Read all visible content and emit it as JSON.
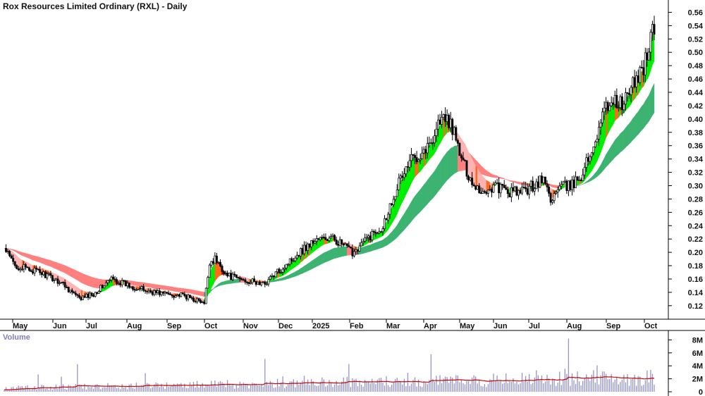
{
  "chart_data": {
    "type": "candlestick",
    "title": "Rox Resources Limited Ordinary (RXL) - Daily",
    "price_axis": {
      "ylim": [
        0.105,
        0.57
      ],
      "ticks": [
        "0.12",
        "0.14",
        "0.16",
        "0.18",
        "0.20",
        "0.22",
        "0.24",
        "0.26",
        "0.28",
        "0.30",
        "0.32",
        "0.34",
        "0.36",
        "0.38",
        "0.40",
        "0.42",
        "0.44",
        "0.46",
        "0.48",
        "0.50",
        "0.52",
        "0.54",
        "0.56"
      ],
      "grid": false
    },
    "x_axis": {
      "labels": [
        "May",
        "Jun",
        "Jul",
        "Aug",
        "Sep",
        "Oct",
        "Nov",
        "Dec",
        "2025",
        "Feb",
        "Mar",
        "Apr",
        "May",
        "Jun",
        "Jul",
        "Aug",
        "Sep",
        "Oct"
      ],
      "points": 365
    },
    "price_path": [
      [
        0,
        0.205
      ],
      [
        6,
        0.18
      ],
      [
        20,
        0.17
      ],
      [
        32,
        0.155
      ],
      [
        42,
        0.13
      ],
      [
        50,
        0.138
      ],
      [
        60,
        0.16
      ],
      [
        70,
        0.15
      ],
      [
        80,
        0.142
      ],
      [
        90,
        0.138
      ],
      [
        100,
        0.135
      ],
      [
        108,
        0.128
      ],
      [
        112,
        0.122
      ],
      [
        115,
        0.185
      ],
      [
        118,
        0.19
      ],
      [
        125,
        0.165
      ],
      [
        135,
        0.158
      ],
      [
        145,
        0.152
      ],
      [
        155,
        0.175
      ],
      [
        165,
        0.2
      ],
      [
        175,
        0.22
      ],
      [
        185,
        0.22
      ],
      [
        195,
        0.2
      ],
      [
        205,
        0.225
      ],
      [
        212,
        0.24
      ],
      [
        220,
        0.3
      ],
      [
        228,
        0.34
      ],
      [
        238,
        0.36
      ],
      [
        244,
        0.4
      ],
      [
        250,
        0.395
      ],
      [
        256,
        0.34
      ],
      [
        262,
        0.305
      ],
      [
        268,
        0.29
      ],
      [
        275,
        0.3
      ],
      [
        282,
        0.29
      ],
      [
        290,
        0.29
      ],
      [
        296,
        0.3
      ],
      [
        302,
        0.31
      ],
      [
        306,
        0.28
      ],
      [
        312,
        0.298
      ],
      [
        318,
        0.3
      ],
      [
        324,
        0.32
      ],
      [
        330,
        0.36
      ],
      [
        334,
        0.4
      ],
      [
        340,
        0.43
      ],
      [
        346,
        0.42
      ],
      [
        352,
        0.45
      ],
      [
        358,
        0.48
      ],
      [
        364,
        0.54
      ]
    ],
    "volume_axis": {
      "ticks": [
        "0",
        "2M",
        "4M",
        "6M",
        "8M"
      ],
      "ylim": [
        0,
        8.8
      ]
    },
    "series": [
      {
        "name": "Volume",
        "color": "#9494c8"
      }
    ],
    "colors": {
      "candle": "#000000",
      "up_fill": "#ffffff",
      "short_band_up": "#00ee00",
      "short_band_down": "#ffb3b3",
      "short_band_mixed": "#ff6a1a",
      "long_band_up": "#3cb371",
      "long_band_down": "#ff7f7f",
      "volume_ma": "#cc0000"
    }
  }
}
